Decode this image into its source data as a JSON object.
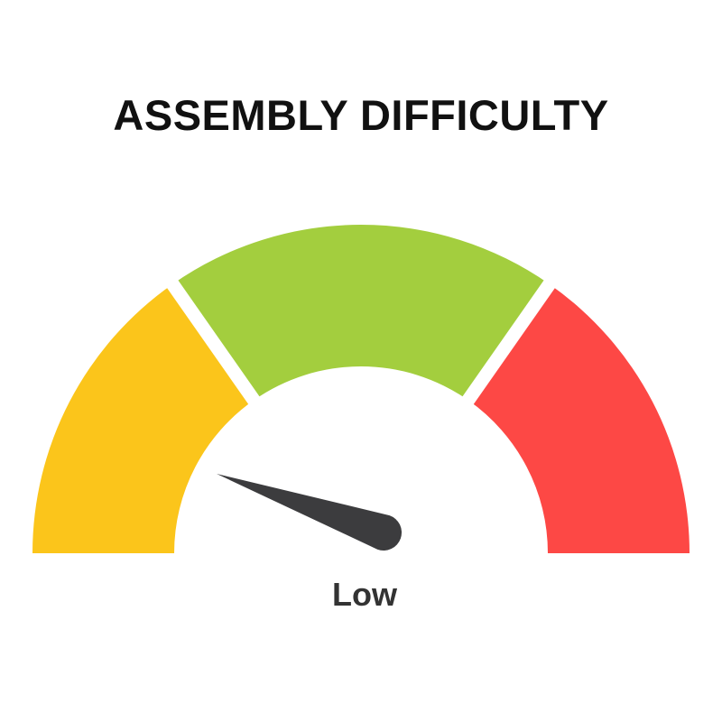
{
  "title": "ASSEMBLY DIFFICULTY",
  "gauge": {
    "reading_label": "Low",
    "segments": [
      {
        "color": "#FBC51B"
      },
      {
        "color": "#A3CE3E"
      },
      {
        "color": "#FD4845"
      }
    ],
    "needle_color": "#3C3C3E",
    "background": "#FFFFFF"
  }
}
